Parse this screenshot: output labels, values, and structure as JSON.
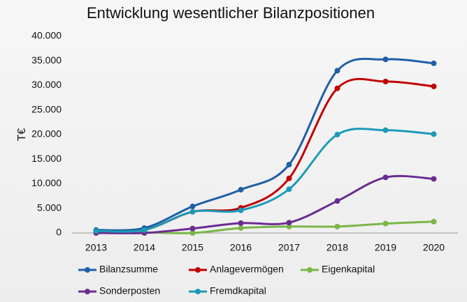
{
  "chart_data": {
    "type": "line",
    "title": "Entwicklung wesentlicher Bilanzpositionen",
    "y_label": "T€",
    "categories": [
      "2013",
      "2014",
      "2015",
      "2016",
      "2017",
      "2018",
      "2019",
      "2020"
    ],
    "series": [
      {
        "name": "Bilanzsumme",
        "color": "#1f5fa8",
        "values": [
          600,
          1000,
          5400,
          8800,
          13900,
          33000,
          35300,
          34500
        ]
      },
      {
        "name": "Anlagevermögen",
        "color": "#c00000",
        "values": [
          300,
          600,
          4300,
          5100,
          11100,
          29400,
          30800,
          29800
        ]
      },
      {
        "name": "Eigenkapital",
        "color": "#7ab648",
        "values": [
          100,
          100,
          0,
          1000,
          1300,
          1300,
          1900,
          2300
        ]
      },
      {
        "name": "Sonderposten",
        "color": "#6a2c91",
        "values": [
          0,
          0,
          900,
          2000,
          2100,
          6500,
          11300,
          11000
        ]
      },
      {
        "name": "Fremdkapital",
        "color": "#1b9bb7",
        "values": [
          400,
          600,
          4300,
          4600,
          8900,
          20000,
          20900,
          20100
        ]
      }
    ],
    "ylim": [
      0,
      40000
    ],
    "yticks": [
      0,
      {
        "value": 5000,
        "label": "5.000"
      },
      {
        "value": 10000,
        "label": "10.000"
      },
      {
        "value": 15000,
        "label": "15.000"
      },
      {
        "value": 20000,
        "label": "20.000"
      },
      {
        "value": 25000,
        "label": "25.000"
      },
      {
        "value": 30000,
        "label": "30.000"
      },
      {
        "value": 35000,
        "label": "35.000"
      },
      {
        "value": 40000,
        "label": "40.000"
      }
    ],
    "grid": false,
    "smooth": true,
    "legend": "bottom"
  }
}
